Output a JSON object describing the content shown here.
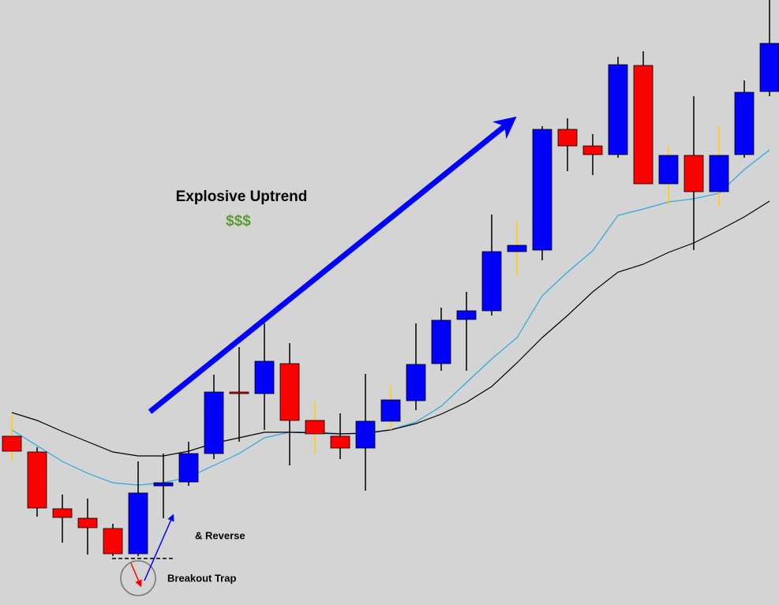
{
  "chart_data": {
    "type": "candlestick",
    "categories": [
      null,
      null,
      null,
      null,
      null,
      null,
      null,
      null,
      null,
      null,
      null,
      null,
      null,
      null,
      null,
      null,
      null,
      null,
      null,
      null,
      null,
      null,
      null,
      null,
      null,
      null,
      null,
      null,
      null,
      null,
      null
    ],
    "open": [
      214,
      194,
      122,
      110,
      97,
      65,
      151,
      156,
      192,
      270,
      268,
      306,
      234,
      214,
      199,
      233,
      259,
      306,
      362,
      373,
      448,
      450,
      603,
      582,
      571,
      684,
      534,
      570,
      524,
      571,
      651
    ],
    "high": [
      242,
      200,
      140,
      135,
      103,
      182,
      192,
      207,
      292,
      327,
      357,
      332,
      257,
      243,
      293,
      279,
      357,
      377,
      397,
      495,
      487,
      607,
      617,
      597,
      695,
      702,
      582,
      645,
      607,
      665,
      767
    ],
    "low": [
      182,
      112,
      79,
      64,
      62,
      62,
      110,
      151,
      185,
      207,
      222,
      177,
      192,
      185,
      145,
      222,
      247,
      297,
      297,
      367,
      417,
      437,
      550,
      545,
      567,
      534,
      507,
      450,
      505,
      567,
      645
    ],
    "close": [
      195,
      123,
      111,
      98,
      65,
      142,
      155,
      192,
      270,
      268,
      309,
      234,
      217,
      199,
      233,
      260,
      305,
      361,
      373,
      448,
      456,
      603,
      582,
      571,
      685,
      534,
      570,
      524,
      570,
      650,
      712
    ],
    "up_color": "#0000ff",
    "down_color": "#ff0000",
    "wick_colors": [
      "#ffcc00",
      "#000000",
      "#000000",
      "#000000",
      "#000000",
      "#000000",
      "#000000",
      "#000000",
      "#000000",
      "#000000",
      "#000000",
      "#000000",
      "#ffcc00",
      "#000000",
      "#000000",
      "#ffcc00",
      "#000000",
      "#000000",
      "#000000",
      "#000000",
      "#ffcc00",
      "#000000",
      "#000000",
      "#000000",
      "#000000",
      "#000000",
      "#ffcc00",
      "#000000",
      "#ffcc00",
      "#000000",
      "#000000"
    ],
    "lines": [
      {
        "color": "#29a9e0",
        "values": [
          222,
          202,
          182,
          167,
          155,
          152,
          155,
          162,
          177,
          192,
          212,
          219,
          220,
          217,
          217,
          222,
          232,
          252,
          282,
          312,
          339,
          392,
          422,
          449,
          494,
          502,
          511,
          515,
          522,
          552,
          577
        ]
      },
      {
        "color": "#000000",
        "values": [
          244,
          234,
          220,
          207,
          194,
          189,
          189,
          195,
          205,
          212,
          219,
          219,
          218,
          217,
          218,
          222,
          230,
          242,
          257,
          277,
          307,
          339,
          367,
          397,
          422,
          432,
          447,
          459,
          475,
          492,
          512
        ]
      }
    ],
    "ylim": [
      0,
      767
    ],
    "annotations": [
      "Explosive Uptrend",
      "$$$",
      "& Reverse",
      "Breakout Trap"
    ]
  }
}
